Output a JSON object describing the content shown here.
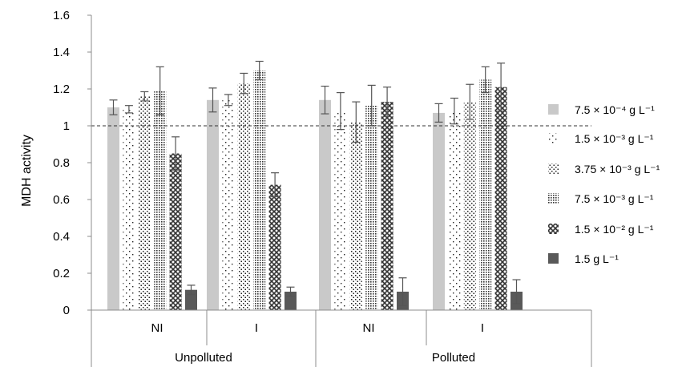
{
  "chart_data": {
    "type": "bar",
    "ylabel": "MDH activity",
    "ylim": [
      0,
      1.6
    ],
    "yticks": [
      "0",
      "0.2",
      "0.4",
      "0.6",
      "0.8",
      "1",
      "1.2",
      "1.4",
      "1.6"
    ],
    "reference_line": 1,
    "grid": false,
    "legend_position": "right",
    "categories": [
      "NI",
      "I",
      "NI",
      "I"
    ],
    "groups": [
      "Unpolluted",
      "Polluted"
    ],
    "series": [
      {
        "name": "7.5 × 10⁻⁴ g L⁻¹",
        "values": [
          1.1,
          1.14,
          1.14,
          1.07
        ],
        "errors": [
          0.04,
          0.065,
          0.075,
          0.05
        ],
        "pattern": "solid-light",
        "color": "#c9c9c9"
      },
      {
        "name": "1.5 × 10⁻³ g L⁻¹",
        "values": [
          1.09,
          1.14,
          1.08,
          1.08
        ],
        "errors": [
          0.02,
          0.03,
          0.1,
          0.07
        ],
        "pattern": "sparse-dots",
        "color": "#333333"
      },
      {
        "name": "3.75 × 10⁻³ g L⁻¹",
        "values": [
          1.16,
          1.23,
          1.02,
          1.13
        ],
        "errors": [
          0.025,
          0.055,
          0.11,
          0.095
        ],
        "pattern": "medium-dots",
        "color": "#333333"
      },
      {
        "name": "7.5 × 10⁻³ g L⁻¹",
        "values": [
          1.19,
          1.3,
          1.11,
          1.25
        ],
        "errors": [
          0.13,
          0.05,
          0.11,
          0.07
        ],
        "pattern": "dense-dots",
        "color": "#333333"
      },
      {
        "name": "1.5 × 10⁻² g L⁻¹",
        "values": [
          0.85,
          0.68,
          1.13,
          1.21
        ],
        "errors": [
          0.09,
          0.065,
          0.08,
          0.13
        ],
        "pattern": "crosshatch",
        "color": "#444444"
      },
      {
        "name": "1.5 g L⁻¹",
        "values": [
          0.11,
          0.1,
          0.1,
          0.1
        ],
        "errors": [
          0.025,
          0.025,
          0.075,
          0.065
        ],
        "pattern": "solid-dark",
        "color": "#595959"
      }
    ]
  }
}
